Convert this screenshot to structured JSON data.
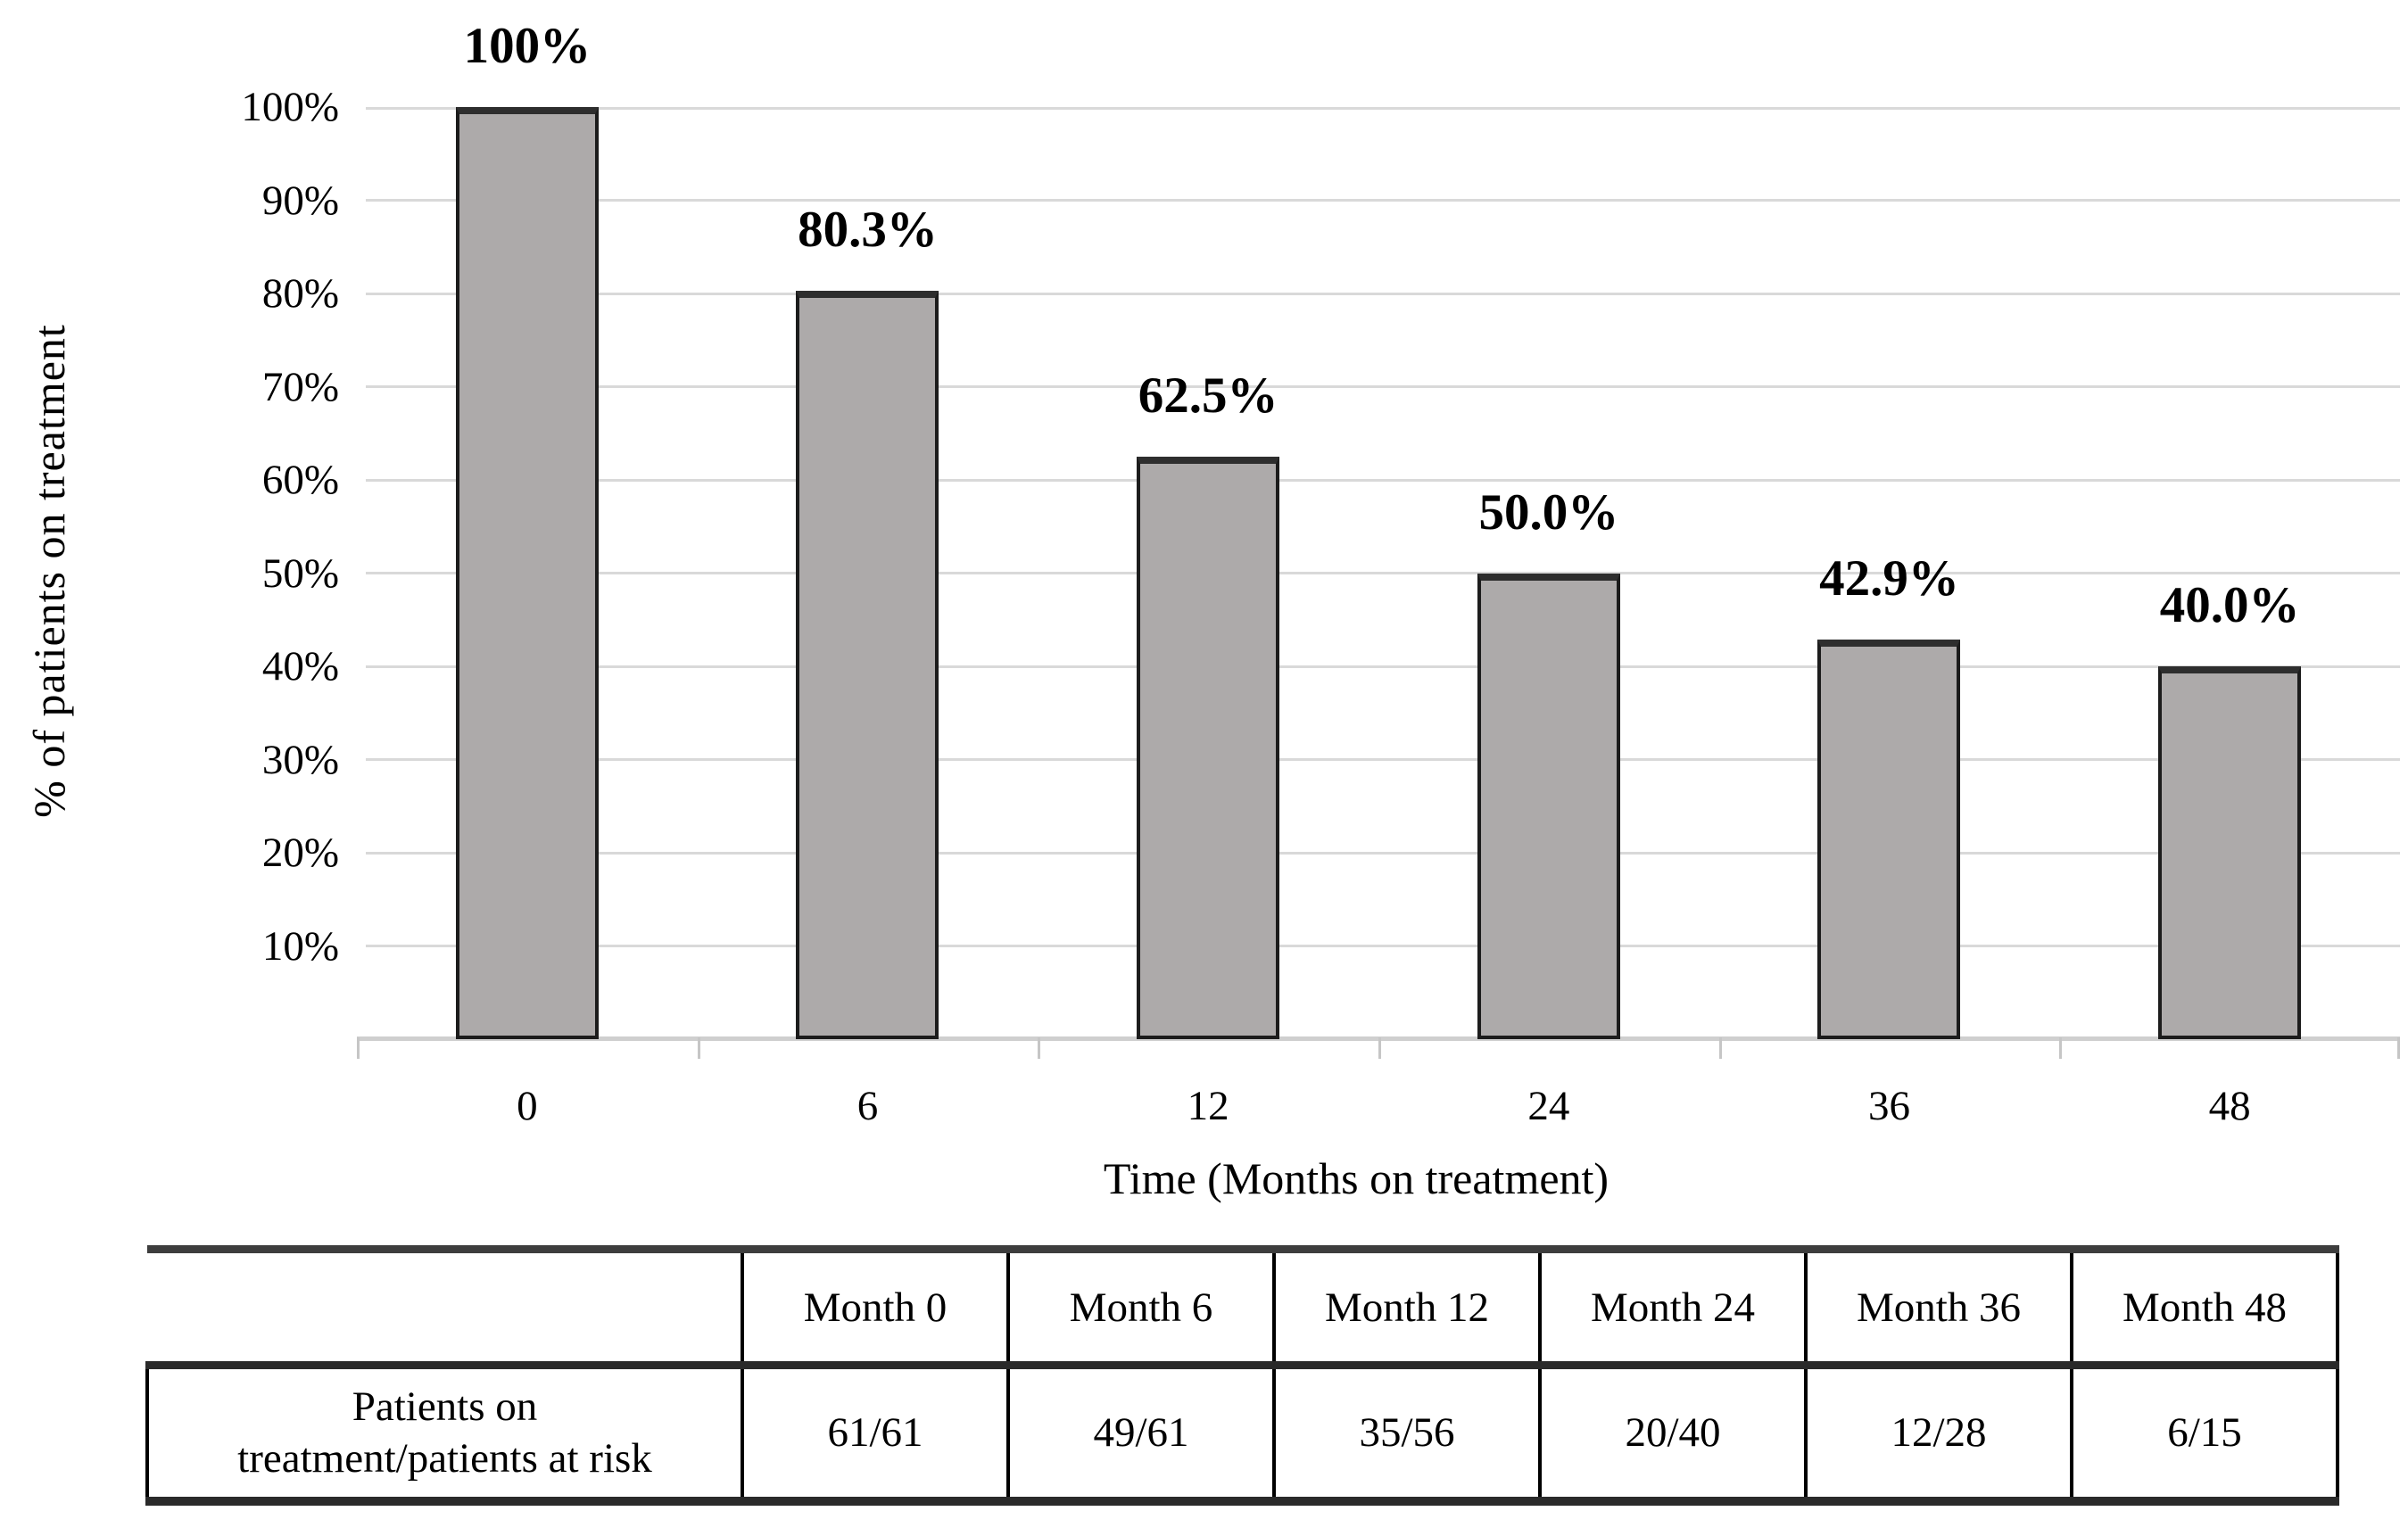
{
  "chart": {
    "y_tick_labels": [
      "100%",
      "90%",
      "80%",
      "70%",
      "60%",
      "50%",
      "40%",
      "30%",
      "20%",
      "10%"
    ],
    "x_tick_labels": [
      "0",
      "6",
      "12",
      "24",
      "36",
      "48"
    ]
  },
  "chart_data": {
    "type": "bar",
    "categories": [
      "0",
      "6",
      "12",
      "24",
      "36",
      "48"
    ],
    "values": [
      100,
      80.3,
      62.5,
      50.0,
      42.9,
      40.0
    ],
    "value_labels": [
      "100%",
      "80.3%",
      "62.5%",
      "50.0%",
      "42.9%",
      "40.0%"
    ],
    "title": "",
    "xlabel": "Time (Months on treatment)",
    "ylabel": "% of patients on treatment",
    "ylim": [
      0,
      100
    ],
    "y_tick_step": 10,
    "grid": true,
    "legend": false,
    "bar_color": "#adaaaa",
    "bar_border_color": "#1c1c1c"
  },
  "table": {
    "headers": [
      "Month 0",
      "Month 6",
      "Month 12",
      "Month 24",
      "Month 36",
      "Month 48"
    ],
    "row_label": "Patients on treatment/patients at risk",
    "row_label_line1": "Patients on",
    "row_label_line2": "treatment/patients at risk",
    "values": [
      "61/61",
      "49/61",
      "35/56",
      "20/40",
      "12/28",
      "6/15"
    ]
  }
}
